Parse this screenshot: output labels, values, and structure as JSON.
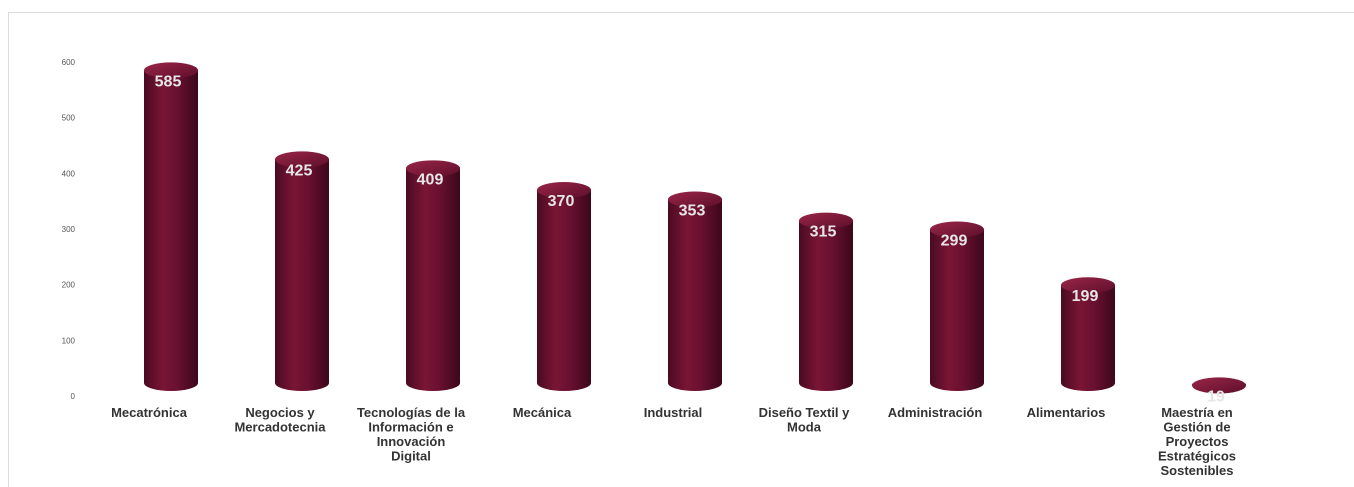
{
  "chart_data": {
    "type": "bar",
    "style": "3d-cylinder",
    "categories": [
      "Mecatrónica",
      "Negocios y Mercadotecnia",
      "Tecnologías de la Información e Innovación Digital",
      "Mecánica",
      "Industrial",
      "Diseño Textil y Moda",
      "Administración",
      "Alimentarios",
      "Maestría en Gestión de Proyectos Estratégicos Sostenibles"
    ],
    "category_lines": [
      [
        "Mecatrónica"
      ],
      [
        "Negocios y",
        "Mercadotecnia"
      ],
      [
        "Tecnologías de la",
        "Información e",
        "Innovación",
        "Digital"
      ],
      [
        "Mecánica"
      ],
      [
        "Industrial"
      ],
      [
        "Diseño Textil y",
        "Moda"
      ],
      [
        "Administración"
      ],
      [
        "Alimentarios"
      ],
      [
        "Maestría en",
        "Gestión de",
        "Proyectos",
        "Estratégicos",
        "Sostenibles"
      ]
    ],
    "values": [
      585,
      425,
      409,
      370,
      353,
      315,
      299,
      199,
      19
    ],
    "data_labels": [
      "585",
      "425",
      "409",
      "370",
      "353",
      "315",
      "299",
      "199",
      "19"
    ],
    "y_ticks": [
      "0",
      "100",
      "200",
      "300",
      "400",
      "500",
      "600"
    ],
    "ylim": [
      0,
      600
    ],
    "grid": false,
    "legend": "none",
    "colors": {
      "bar_dark": "#4a0a22",
      "bar_mid": "#7a1535",
      "bar_light": "#9a2648",
      "label": "#e6e6e6"
    }
  }
}
